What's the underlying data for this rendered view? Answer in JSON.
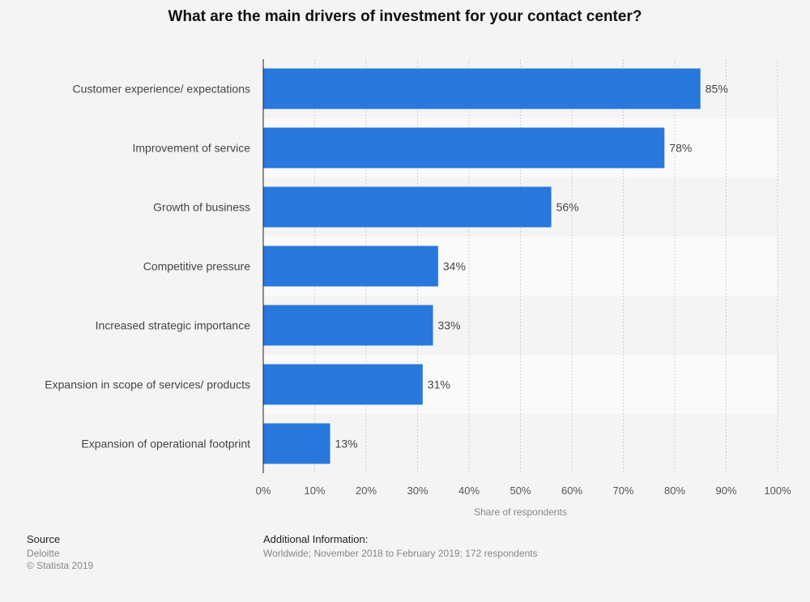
{
  "title": "What are the main drivers of investment for your contact center?",
  "chart_data": {
    "type": "bar",
    "orientation": "horizontal",
    "categories": [
      "Customer experience/ expectations",
      "Improvement of service",
      "Growth of business",
      "Competitive pressure",
      "Increased strategic importance",
      "Expansion in scope of services/ products",
      "Expansion of operational footprint"
    ],
    "values": [
      85,
      78,
      56,
      34,
      33,
      31,
      13
    ],
    "value_labels": [
      "85%",
      "78%",
      "56%",
      "34%",
      "33%",
      "31%",
      "13%"
    ],
    "xlabel": "Share of respondents",
    "xlim": [
      0,
      100
    ],
    "xticks": [
      "0%",
      "10%",
      "20%",
      "30%",
      "40%",
      "50%",
      "60%",
      "70%",
      "80%",
      "90%",
      "100%"
    ],
    "bar_color": "#2878dd",
    "grid": true
  },
  "footer": {
    "source_heading": "Source",
    "source": "Deloitte",
    "copyright": "© Statista 2019",
    "additional_heading": "Additional Information:",
    "additional": "Worldwide; November 2018 to February 2019; 172 respondents"
  }
}
